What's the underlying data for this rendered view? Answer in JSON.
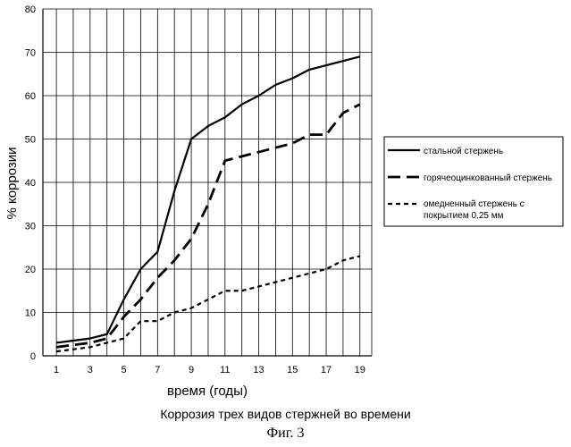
{
  "chart_data": {
    "type": "line",
    "title": "Коррозия трех видов стержней во времени",
    "xlabel": "время (годы)",
    "ylabel": "% коррозии",
    "x": [
      1,
      2,
      3,
      4,
      5,
      6,
      7,
      8,
      9,
      10,
      11,
      12,
      13,
      14,
      15,
      16,
      17,
      18,
      19
    ],
    "x_ticks": [
      1,
      3,
      5,
      7,
      9,
      11,
      13,
      15,
      17,
      19
    ],
    "xlim": [
      0.2,
      19.7
    ],
    "ylim": [
      0,
      80
    ],
    "y_ticks": [
      0,
      10,
      20,
      30,
      40,
      50,
      60,
      70,
      80
    ],
    "grid": true,
    "legend_position": "right",
    "series": [
      {
        "name": "стальной стержень",
        "style": "solid",
        "color": "#000000",
        "values": [
          3,
          3.5,
          4,
          5,
          13,
          20,
          24,
          38,
          50,
          53,
          55,
          58,
          60,
          62.5,
          64,
          66,
          67,
          68,
          69
        ]
      },
      {
        "name": "горячеоцинкованный стержень",
        "style": "long-dash",
        "color": "#000000",
        "values": [
          2,
          2.5,
          3,
          4,
          9,
          13,
          18,
          22,
          27,
          35,
          45,
          46,
          47,
          48,
          49,
          51,
          51,
          56,
          58
        ]
      },
      {
        "name": "омедненный стержень с покрытием 0,25 мм",
        "style": "short-dash",
        "color": "#000000",
        "values": [
          1,
          1.5,
          2,
          3,
          4,
          8,
          8,
          10,
          11,
          13,
          15,
          15,
          16,
          17,
          18,
          19,
          20,
          22,
          23
        ]
      }
    ]
  },
  "figure": {
    "caption": "Фиг. 3"
  }
}
